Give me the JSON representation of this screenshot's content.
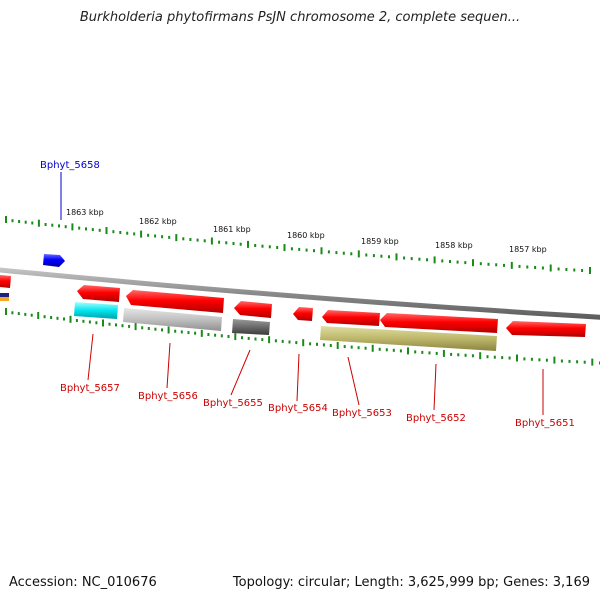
{
  "title": "Burkholderia phytofirmans PsJN chromosome 2, complete sequen...",
  "footer": {
    "accession": "Accession: NC_010676",
    "summary": "Topology: circular; Length: 3,625,999 bp; Genes: 3,169"
  },
  "colors": {
    "backbone": "#8a8a8a",
    "forward_gene": "#ff0000",
    "tick": "#1a8a1a",
    "label_forward": "#0000cc",
    "label_reverse": "#cc0000"
  },
  "scale_labels": [
    "1863 kbp",
    "1862 kbp",
    "1861 kbp",
    "1860 kbp",
    "1859 kbp",
    "1858 kbp",
    "1857 kbp"
  ],
  "genes": [
    {
      "name": "Bphyt_5658",
      "strand": "+",
      "color": "#0000ff"
    },
    {
      "name": "Bphyt_5657",
      "strand": "-",
      "color": "#ff0000",
      "feature_color": "#00e5ee"
    },
    {
      "name": "Bphyt_5656",
      "strand": "-",
      "color": "#ff0000",
      "feature_color": "#c0c0c0"
    },
    {
      "name": "Bphyt_5655",
      "strand": "-",
      "color": "#ff0000",
      "feature_color": "#6a6a6a"
    },
    {
      "name": "Bphyt_5654",
      "strand": "-",
      "color": "#ff0000"
    },
    {
      "name": "Bphyt_5653",
      "strand": "-",
      "color": "#ff0000",
      "feature_color": "#bdb76b"
    },
    {
      "name": "Bphyt_5652",
      "strand": "-",
      "color": "#ff0000"
    },
    {
      "name": "Bphyt_5651",
      "strand": "-",
      "color": "#ff0000"
    }
  ]
}
